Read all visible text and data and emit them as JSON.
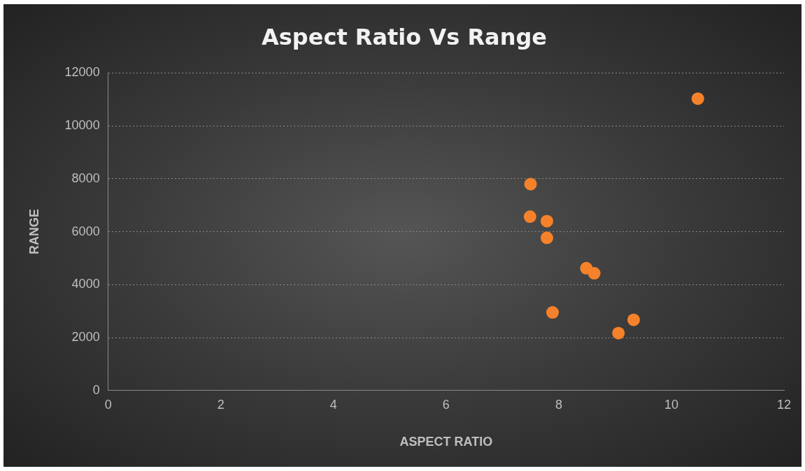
{
  "chart_data": {
    "type": "scatter",
    "title": "Aspect Ratio Vs Range",
    "xlabel": "ASPECT RATIO",
    "ylabel": "RANGE",
    "x": [
      7.5,
      7.49,
      7.79,
      7.79,
      8.49,
      8.63,
      7.89,
      9.06,
      9.33,
      10.47
    ],
    "series": [
      {
        "color": "#f5822a",
        "values": [
          7800,
          6570,
          6400,
          5770,
          4620,
          4430,
          2950,
          2170,
          2670,
          11030
        ]
      }
    ],
    "xlim": [
      0,
      12
    ],
    "xticks": [
      0,
      2,
      4,
      6,
      8,
      10,
      12
    ],
    "ylim": [
      0,
      12000
    ],
    "yticks": [
      0,
      2000,
      4000,
      6000,
      8000,
      10000,
      12000
    ],
    "grid": "y",
    "legend": false,
    "marker": "circle"
  }
}
